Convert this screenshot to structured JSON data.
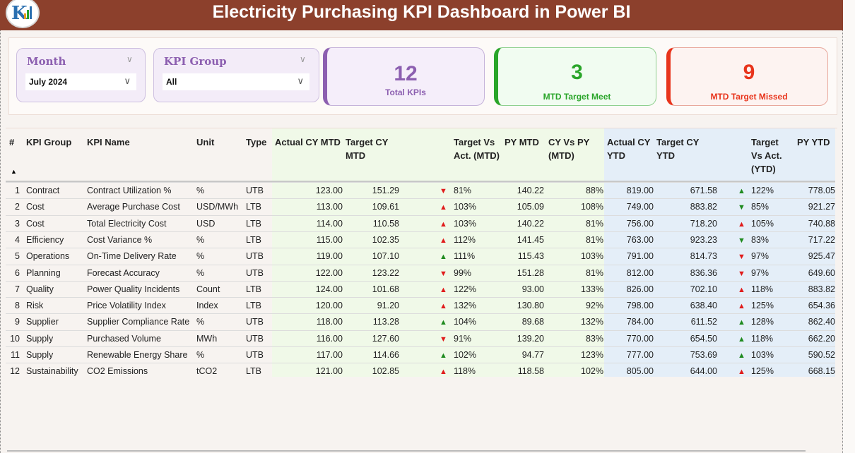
{
  "header": {
    "title": "Electricity Purchasing KPI Dashboard in Power BI"
  },
  "slicers": [
    {
      "label": "Month",
      "value": "July 2024"
    },
    {
      "label": "KPI Group",
      "value": "All"
    }
  ],
  "cards": [
    {
      "value": "12",
      "caption": "Total KPIs",
      "color": "#8c5fb0"
    },
    {
      "value": "3",
      "caption": "MTD Target Meet",
      "color": "#2aa52a"
    },
    {
      "value": "9",
      "caption": "MTD Target Missed",
      "color": "#e8341c"
    }
  ],
  "table": {
    "columns": [
      "#",
      "KPI Group",
      "KPI Name",
      "Unit",
      "Type",
      "Actual CY MTD",
      "Target CY MTD",
      "Target Vs Act. (MTD)",
      "PY MTD",
      "CY Vs PY (MTD)",
      "Actual CY YTD",
      "Target CY YTD",
      "Target Vs Act. (YTD)",
      "PY YTD"
    ],
    "rows": [
      [
        "1",
        "Contract",
        "Contract Utilization %",
        "%",
        "UTB",
        "123.00",
        "151.29",
        "down-red",
        "81%",
        "140.22",
        "88%",
        "819.00",
        "671.58",
        "up-green",
        "122%",
        "778.05"
      ],
      [
        "2",
        "Cost",
        "Average Purchase Cost",
        "USD/MWh",
        "LTB",
        "113.00",
        "109.61",
        "up-red",
        "103%",
        "105.09",
        "108%",
        "749.00",
        "883.82",
        "down-green",
        "85%",
        "921.27"
      ],
      [
        "3",
        "Cost",
        "Total Electricity Cost",
        "USD",
        "LTB",
        "114.00",
        "110.58",
        "up-red",
        "103%",
        "140.22",
        "81%",
        "756.00",
        "718.20",
        "up-red",
        "105%",
        "740.88"
      ],
      [
        "4",
        "Efficiency",
        "Cost Variance %",
        "%",
        "LTB",
        "115.00",
        "102.35",
        "up-red",
        "112%",
        "141.45",
        "81%",
        "763.00",
        "923.23",
        "down-green",
        "83%",
        "717.22"
      ],
      [
        "5",
        "Operations",
        "On-Time Delivery Rate",
        "%",
        "UTB",
        "119.00",
        "107.10",
        "up-green",
        "111%",
        "115.43",
        "103%",
        "791.00",
        "814.73",
        "down-red",
        "97%",
        "925.47"
      ],
      [
        "6",
        "Planning",
        "Forecast Accuracy",
        "%",
        "UTB",
        "122.00",
        "123.22",
        "down-red",
        "99%",
        "151.28",
        "81%",
        "812.00",
        "836.36",
        "down-red",
        "97%",
        "649.60"
      ],
      [
        "7",
        "Quality",
        "Power Quality Incidents",
        "Count",
        "LTB",
        "124.00",
        "101.68",
        "up-red",
        "122%",
        "93.00",
        "133%",
        "826.00",
        "702.10",
        "up-red",
        "118%",
        "883.82"
      ],
      [
        "8",
        "Risk",
        "Price Volatility Index",
        "Index",
        "LTB",
        "120.00",
        "91.20",
        "up-red",
        "132%",
        "130.80",
        "92%",
        "798.00",
        "638.40",
        "up-red",
        "125%",
        "654.36"
      ],
      [
        "9",
        "Supplier",
        "Supplier Compliance Rate",
        "%",
        "UTB",
        "118.00",
        "113.28",
        "up-green",
        "104%",
        "89.68",
        "132%",
        "784.00",
        "611.52",
        "up-green",
        "128%",
        "862.40"
      ],
      [
        "10",
        "Supply",
        "Purchased Volume",
        "MWh",
        "UTB",
        "116.00",
        "127.60",
        "down-red",
        "91%",
        "139.20",
        "83%",
        "770.00",
        "654.50",
        "up-green",
        "118%",
        "662.20"
      ],
      [
        "11",
        "Supply",
        "Renewable Energy Share",
        "%",
        "UTB",
        "117.00",
        "114.66",
        "up-green",
        "102%",
        "94.77",
        "123%",
        "777.00",
        "753.69",
        "up-green",
        "103%",
        "590.52"
      ],
      [
        "12",
        "Sustainability",
        "CO2 Emissions",
        "tCO2",
        "LTB",
        "121.00",
        "102.85",
        "up-red",
        "118%",
        "118.58",
        "102%",
        "805.00",
        "644.00",
        "up-red",
        "125%",
        "668.15"
      ]
    ]
  },
  "colors": {
    "up_green": "#1e8a1e",
    "red": "#e01b1b",
    "title_bar": "#8c402c"
  }
}
